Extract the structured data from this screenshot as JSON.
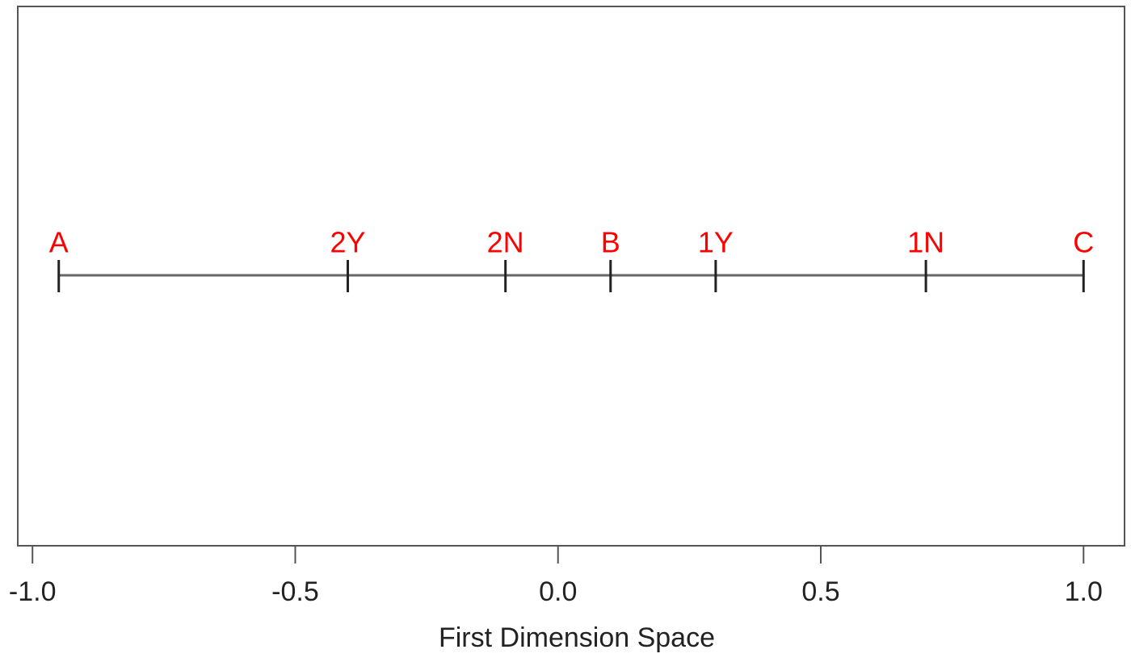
{
  "chart_data": {
    "type": "scatter",
    "x_label": "First Dimension Space",
    "labels": [
      "A",
      "2Y",
      "2N",
      "B",
      "1Y",
      "1N",
      "C"
    ],
    "x": [
      -0.95,
      -0.4,
      -0.1,
      0.1,
      0.3,
      0.7,
      1.0
    ],
    "label_color": "#ff0000",
    "line_color": "#666666",
    "marker_color": "#222222",
    "xlim": [
      -1.028,
      1.078
    ],
    "xticks": [
      {
        "value": -1,
        "label": "-1.0"
      },
      {
        "value": -0.5,
        "label": "-0.5"
      },
      {
        "value": 0,
        "label": "0.0"
      },
      {
        "value": 0.5,
        "label": "0.5"
      },
      {
        "value": 1,
        "label": "1.0"
      }
    ]
  }
}
